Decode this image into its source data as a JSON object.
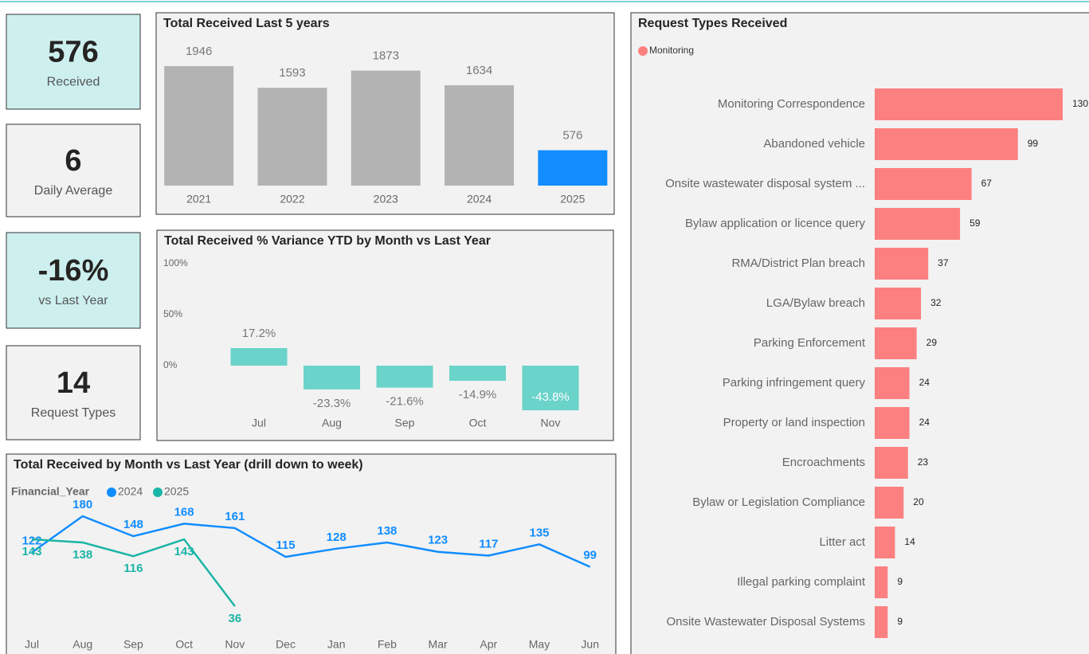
{
  "kpis": [
    {
      "value": 576,
      "label": "Received"
    },
    {
      "value": 6,
      "label": "Daily Average"
    },
    {
      "value": -16,
      "value_label": "-16%",
      "label": "vs Last Year"
    },
    {
      "value": 14,
      "label": "Request Types"
    }
  ],
  "chart_data": [
    {
      "type": "bar",
      "title": "Total Received Last 5 years",
      "categories": [
        "2021",
        "2022",
        "2023",
        "2024",
        "2025"
      ],
      "values": [
        1946,
        1593,
        1873,
        1634,
        576
      ],
      "colors": [
        "#b3b3b3",
        "#b3b3b3",
        "#b3b3b3",
        "#b3b3b3",
        "#118dff"
      ]
    },
    {
      "type": "bar",
      "title": "Total Received % Variance YTD by Month vs Last Year",
      "categories": [
        "Jul",
        "Aug",
        "Sep",
        "Oct",
        "Nov"
      ],
      "values": [
        17.2,
        -23.3,
        -21.6,
        -14.9,
        -43.8
      ],
      "value_labels": [
        "17.2%",
        "-23.3%",
        "-21.6%",
        "-14.9%",
        "-43.8%"
      ],
      "color": "#6ad3ca",
      "ylim": [
        -50,
        100
      ],
      "yticks": [
        {
          "value": 0,
          "label": "0%"
        },
        {
          "value": 50,
          "label": "50%"
        },
        {
          "value": 100,
          "label": "100%"
        }
      ]
    },
    {
      "type": "line",
      "title": "Total Received by Month vs Last Year (drill down to week)",
      "legend_title": "Financial_Year",
      "categories": [
        "Jul",
        "Aug",
        "Sep",
        "Oct",
        "Nov",
        "Dec",
        "Jan",
        "Feb",
        "Mar",
        "Apr",
        "May",
        "Jun"
      ],
      "series": [
        {
          "name": "2024",
          "color": "#118dff",
          "values": [
            122,
            180,
            148,
            168,
            161,
            115,
            128,
            138,
            123,
            117,
            135,
            99
          ]
        },
        {
          "name": "2025",
          "color": "#1ab5a6",
          "values": [
            143,
            138,
            116,
            143,
            36,
            null,
            null,
            null,
            null,
            null,
            null,
            null
          ]
        }
      ]
    },
    {
      "type": "hbar",
      "title": "Request Types Received",
      "categories": [
        "Monitoring Correspondence",
        "Abandoned vehicle",
        "Onsite wastewater disposal system ...",
        "Bylaw application or licence query",
        "RMA/District Plan breach",
        "LGA/Bylaw breach",
        "Parking Enforcement",
        "Parking infringement query",
        "Property or land inspection",
        "Encroachments",
        "Bylaw or Legislation Compliance",
        "Litter act",
        "Illegal parking complaint",
        "Onsite Wastewater Disposal Systems"
      ],
      "series": [
        {
          "name": "Monitoring",
          "color": "#fd8080",
          "values": [
            130,
            99,
            67,
            59,
            37,
            32,
            29,
            24,
            24,
            23,
            20,
            14,
            9,
            9
          ]
        }
      ]
    }
  ]
}
